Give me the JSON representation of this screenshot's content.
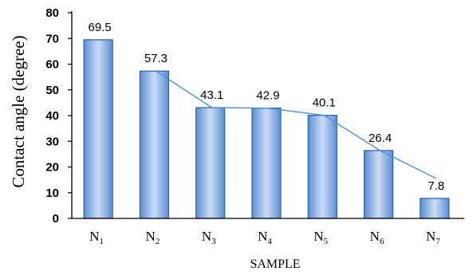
{
  "chart_data": {
    "type": "bar",
    "categories": [
      {
        "base": "N",
        "sub": "1"
      },
      {
        "base": "N",
        "sub": "2"
      },
      {
        "base": "N",
        "sub": "3"
      },
      {
        "base": "N",
        "sub": "4"
      },
      {
        "base": "N",
        "sub": "5"
      },
      {
        "base": "N",
        "sub": "6"
      },
      {
        "base": "N",
        "sub": "7"
      }
    ],
    "values": [
      69.5,
      57.3,
      43.1,
      42.9,
      40.1,
      26.4,
      7.8
    ],
    "data_labels": [
      "69.5",
      "57.3",
      "43.1",
      "42.9",
      "40.1",
      "26.4",
      "7.8"
    ],
    "xlabel": "SAMPLE",
    "ylabel": "Contact angle (degree)",
    "ylim": [
      0,
      80
    ],
    "yticks": [
      0,
      10,
      20,
      30,
      40,
      50,
      60,
      70,
      80
    ],
    "trendline": true,
    "grid": false,
    "legend": "none",
    "colors": {
      "bar_fill_light": "#c9dcf3",
      "bar_fill_dark": "#5b8fd6",
      "bar_stroke": "#2a5ea8",
      "trendline": "#4a90d9",
      "axis": "#000000"
    }
  }
}
